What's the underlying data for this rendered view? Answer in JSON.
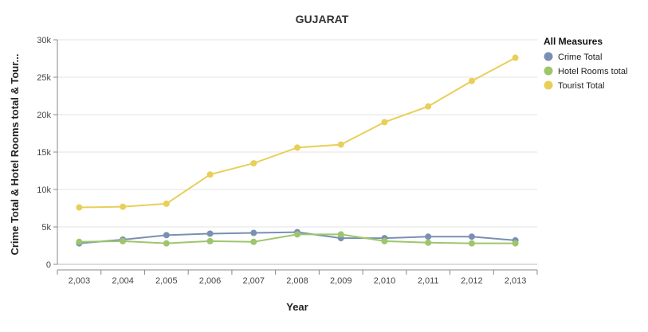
{
  "chart_data": {
    "type": "line",
    "title": "GUJARAT",
    "xlabel": "Year",
    "ylabel": "Crime Total & Hotel Rooms total & Tour...",
    "x": [
      "2,003",
      "2,004",
      "2,005",
      "2,006",
      "2,007",
      "2,008",
      "2,009",
      "2,010",
      "2,011",
      "2,012",
      "2,013"
    ],
    "ylim": [
      0,
      30000
    ],
    "yticks": [
      0,
      5000,
      10000,
      15000,
      20000,
      25000,
      30000
    ],
    "ytick_labels": [
      "0",
      "5k",
      "10k",
      "15k",
      "20k",
      "25k",
      "30k"
    ],
    "grid": "horizontal",
    "legend": {
      "title": "All Measures",
      "position": "right"
    },
    "series": [
      {
        "name": "Crime Total",
        "color": "#7990b3",
        "values": [
          2800,
          3300,
          3900,
          4100,
          4200,
          4300,
          3500,
          3500,
          3700,
          3700,
          3200
        ]
      },
      {
        "name": "Hotel Rooms total",
        "color": "#9dc66c",
        "values": [
          3000,
          3100,
          2800,
          3100,
          3000,
          4000,
          4000,
          3100,
          2900,
          2800,
          2800
        ]
      },
      {
        "name": "Tourist Total",
        "color": "#e8cf58",
        "values": [
          7600,
          7700,
          8100,
          12000,
          13500,
          15600,
          16000,
          19000,
          21100,
          24500,
          27600
        ]
      }
    ]
  }
}
